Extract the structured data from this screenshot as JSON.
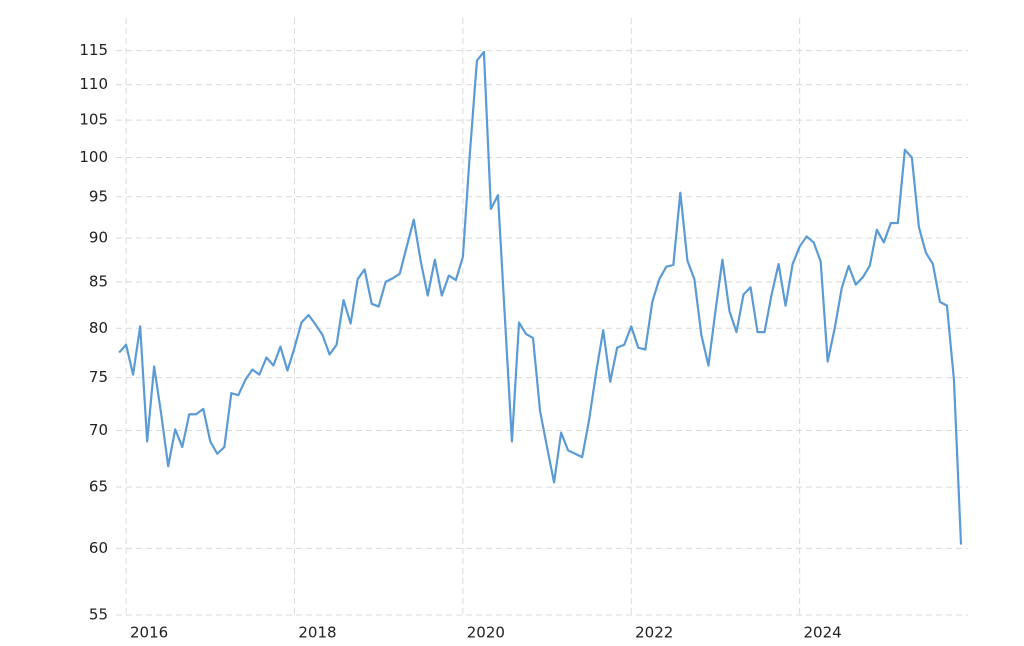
{
  "chart_data": {
    "type": "line",
    "log_scale_y": true,
    "grid": true,
    "x": [
      2015.917,
      2016.0,
      2016.083,
      2016.167,
      2016.25,
      2016.333,
      2016.417,
      2016.5,
      2016.583,
      2016.667,
      2016.75,
      2016.833,
      2016.917,
      2017.0,
      2017.083,
      2017.167,
      2017.25,
      2017.333,
      2017.417,
      2017.5,
      2017.583,
      2017.667,
      2017.75,
      2017.833,
      2017.917,
      2018.0,
      2018.083,
      2018.167,
      2018.25,
      2018.333,
      2018.417,
      2018.5,
      2018.583,
      2018.667,
      2018.75,
      2018.833,
      2018.917,
      2019.0,
      2019.083,
      2019.167,
      2019.25,
      2019.333,
      2019.417,
      2019.5,
      2019.583,
      2019.667,
      2019.75,
      2019.833,
      2019.917,
      2020.0,
      2020.083,
      2020.167,
      2020.25,
      2020.333,
      2020.417,
      2020.5,
      2020.583,
      2020.667,
      2020.75,
      2020.833,
      2020.917,
      2021.0,
      2021.083,
      2021.167,
      2021.25,
      2021.333,
      2021.417,
      2021.5,
      2021.583,
      2021.667,
      2021.75,
      2021.833,
      2021.917,
      2022.0,
      2022.083,
      2022.167,
      2022.25,
      2022.333,
      2022.417,
      2022.5,
      2022.583,
      2022.667,
      2022.75,
      2022.833,
      2022.917,
      2023.0,
      2023.083,
      2023.167,
      2023.25,
      2023.333,
      2023.417,
      2023.5,
      2023.583,
      2023.667,
      2023.75,
      2023.833,
      2023.917,
      2024.0,
      2024.083,
      2024.167,
      2024.25,
      2024.333,
      2024.417,
      2024.5,
      2024.583,
      2024.667,
      2024.75,
      2024.833,
      2024.917,
      2025.0,
      2025.083,
      2025.167,
      2025.25,
      2025.333,
      2025.417,
      2025.5,
      2025.583,
      2025.667,
      2025.75,
      2025.833,
      2025.917
    ],
    "series": [
      {
        "color": "#5b9bd5",
        "values": [
          77.5,
          78.3,
          75.3,
          80.2,
          69.0,
          76.1,
          71.5,
          66.8,
          70.1,
          68.5,
          71.5,
          71.5,
          72.0,
          69.0,
          67.9,
          68.5,
          73.5,
          73.3,
          74.8,
          75.8,
          75.3,
          77.0,
          76.2,
          78.1,
          75.7,
          78.0,
          80.6,
          81.4,
          80.4,
          79.3,
          77.3,
          78.3,
          83.0,
          80.5,
          85.3,
          86.4,
          82.6,
          82.3,
          85.0,
          85.4,
          85.9,
          89.0,
          92.2,
          87.3,
          83.5,
          87.5,
          83.5,
          85.7,
          85.2,
          87.8,
          100.5,
          113.5,
          114.8,
          93.5,
          95.2,
          81.0,
          69.0,
          80.6,
          79.4,
          79.0,
          71.8,
          68.5,
          65.4,
          69.8,
          68.2,
          67.9,
          67.6,
          71.0,
          75.5,
          79.8,
          74.6,
          78.0,
          78.3,
          80.2,
          78.0,
          77.8,
          82.8,
          85.3,
          86.7,
          86.9,
          95.5,
          87.4,
          85.3,
          79.3,
          76.2,
          81.8,
          87.5,
          81.8,
          79.6,
          83.6,
          84.4,
          79.6,
          79.6,
          83.6,
          87.0,
          82.4,
          87.0,
          89.0,
          90.2,
          89.5,
          87.3,
          76.6,
          80.0,
          84.3,
          86.8,
          84.7,
          85.5,
          86.8,
          91.0,
          89.5,
          91.8,
          91.8,
          101.0,
          100.0,
          91.3,
          88.3,
          87.0,
          82.8,
          82.4,
          74.8,
          60.3
        ]
      }
    ],
    "xlim": [
      2015.88,
      2026.0
    ],
    "xticks": [
      2016,
      2018,
      2020,
      2022,
      2024
    ],
    "ylim": [
      55,
      120
    ],
    "yticks": [
      55,
      60,
      65,
      70,
      75,
      80,
      85,
      90,
      95,
      100,
      105,
      110,
      115
    ]
  }
}
